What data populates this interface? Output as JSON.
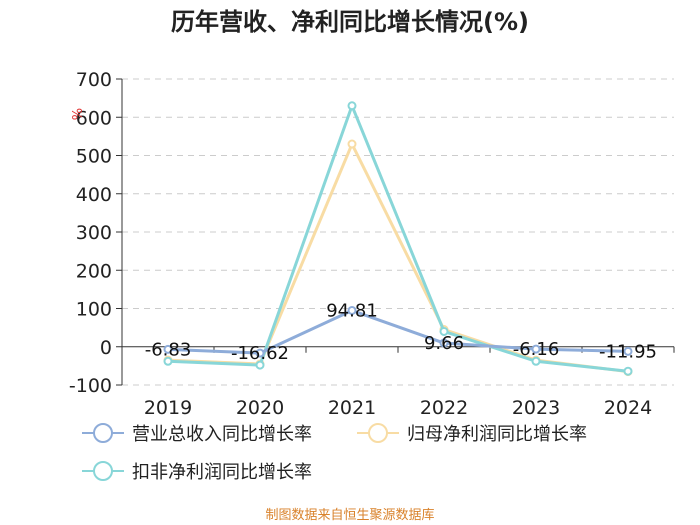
{
  "title": "历年营收、净利同比增长情况(%)",
  "source": "制图数据来自恒生聚源数据库",
  "chart_data": {
    "type": "line",
    "title": "历年营收、净利同比增长情况(%)",
    "ylabel": "%",
    "xlabel": "",
    "x": [
      "2019",
      "2020",
      "2021",
      "2022",
      "2023",
      "2024"
    ],
    "ylim": [
      -100,
      700
    ],
    "yticks": [
      -100,
      0,
      100,
      200,
      300,
      400,
      500,
      600,
      700
    ],
    "grid": true,
    "legend_position": "bottom-left",
    "series": [
      {
        "name": "营业总收入同比增长率",
        "color": "#8eacd9",
        "values": [
          -6.83,
          -16.62,
          94.81,
          9.66,
          -6.16,
          -11.95
        ],
        "labels": [
          "-6.83",
          "-16.62",
          "94.81",
          "9.66",
          "-6.16",
          "-11.95"
        ]
      },
      {
        "name": "归母净利润同比增长率",
        "color": "#f8dca4",
        "values": [
          -35,
          -45,
          530,
          45,
          -35,
          -65
        ]
      },
      {
        "name": "扣非净利润同比增长率",
        "color": "#88d6d8",
        "values": [
          -38,
          -48,
          630,
          40,
          -38,
          -64
        ]
      }
    ]
  }
}
